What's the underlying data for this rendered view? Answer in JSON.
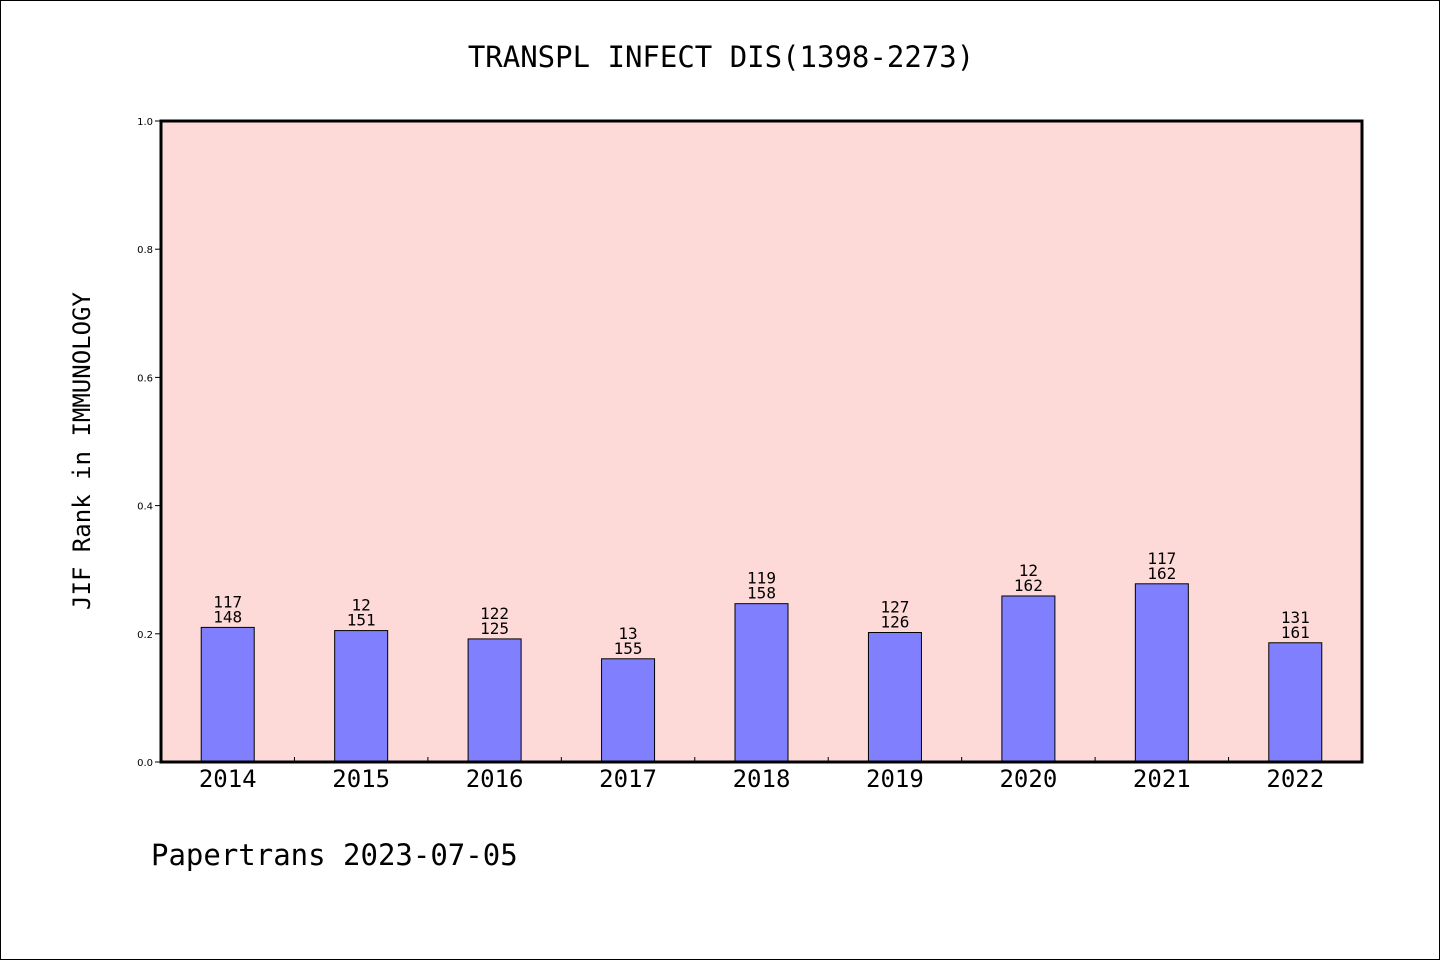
{
  "chart_data": {
    "type": "bar",
    "title": "TRANSPL INFECT DIS(1398-2273)",
    "xlabel": "",
    "ylabel": "JIF Rank in IMMUNOLOGY",
    "ylim": [
      0.0,
      1.0
    ],
    "yticks": [
      "0.0",
      "0.2",
      "0.4",
      "0.6",
      "0.8",
      "1.0"
    ],
    "categories": [
      "2014",
      "2015",
      "2016",
      "2017",
      "2018",
      "2019",
      "2020",
      "2021",
      "2022"
    ],
    "values": [
      0.21,
      0.205,
      0.192,
      0.161,
      0.247,
      0.202,
      0.259,
      0.278,
      0.186
    ],
    "labels_top": [
      "117",
      "12",
      "122",
      "13",
      "119",
      "127",
      "12",
      "117",
      "131"
    ],
    "labels_bottom": [
      "148",
      "151",
      "125",
      "155",
      "158",
      "126",
      "162",
      "162",
      "161"
    ],
    "grid": false,
    "legend": "none",
    "colors": {
      "plot_background": "#fddad7",
      "bar_fill": "#8080ff",
      "bar_edge": "#000000",
      "axis": "#000000"
    }
  },
  "footer": "Papertrans 2023-07-05"
}
